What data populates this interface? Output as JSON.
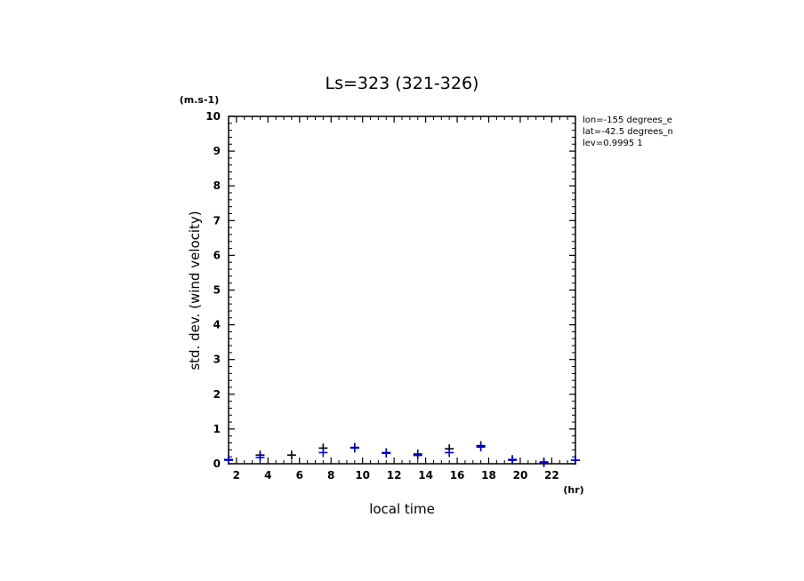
{
  "chart_data": {
    "type": "scatter",
    "title": "Ls=323 (321-326)",
    "ylabel": "std. dev. (wind velocity)",
    "yunit": "(m.s-1)",
    "xlabel": "local time",
    "xunit": "(hr)",
    "xlim": [
      1.5,
      23.5
    ],
    "ylim": [
      0,
      10
    ],
    "xticks": [
      2,
      4,
      6,
      8,
      10,
      12,
      14,
      16,
      18,
      20,
      22
    ],
    "yticks": [
      0,
      1,
      2,
      3,
      4,
      5,
      6,
      7,
      8,
      9,
      10
    ],
    "info": [
      "lon=-155 degrees_e",
      "lat=-42.5 degrees_n",
      "lev=0.9995 1"
    ],
    "colors": {
      "series_black": "#000000",
      "series_blue": "#0000cc"
    },
    "series": [
      {
        "color": "#000000",
        "x": [
          1.5,
          3.5,
          5.5,
          7.5,
          9.5,
          11.5,
          13.5,
          15.5,
          17.5,
          19.5,
          21.5,
          23.5
        ],
        "values": [
          0.12,
          0.25,
          0.25,
          0.45,
          0.47,
          0.32,
          0.28,
          0.43,
          0.52,
          0.12,
          0.05,
          0.1
        ]
      },
      {
        "color": "#0000cc",
        "x": [
          1.5,
          3.5,
          7.5,
          9.5,
          11.5,
          13.5,
          15.5,
          17.5,
          19.5,
          21.5,
          23.5
        ],
        "values": [
          0.1,
          0.18,
          0.32,
          0.45,
          0.3,
          0.24,
          0.32,
          0.48,
          0.1,
          0.03,
          0.1
        ]
      }
    ]
  }
}
